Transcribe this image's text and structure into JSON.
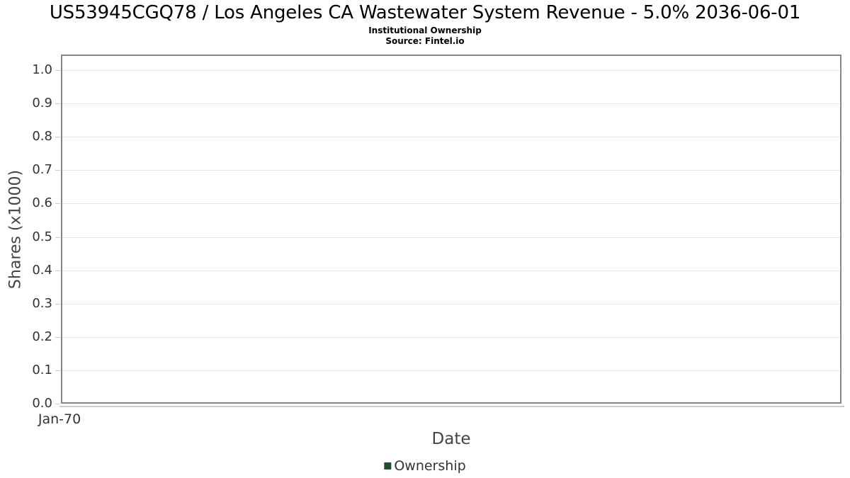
{
  "chart_data": {
    "type": "bar",
    "title": "US53945CGQ78 / Los Angeles CA Wastewater System Revenue - 5.0% 2036-06-01",
    "subtitle": "Institutional Ownership",
    "source": "Source: Fintel.io",
    "xlabel": "Date",
    "ylabel": "Shares (x1000)",
    "x_ticks": [
      "Jan-70"
    ],
    "y_ticks": [
      "0.0",
      "0.1",
      "0.2",
      "0.3",
      "0.4",
      "0.5",
      "0.6",
      "0.7",
      "0.8",
      "0.9",
      "1.0"
    ],
    "ylim": [
      0,
      1.047
    ],
    "grid": "horizontal",
    "legend_position": "bottom",
    "series": [
      {
        "name": "Ownership",
        "color": "#1e4e2d",
        "x": [],
        "values": []
      }
    ],
    "colors": {
      "title_text": "#000000",
      "tick_text": "#333333",
      "axis_label_text": "#444444",
      "plot_border": "#888888",
      "gridline": "#e7e7e7",
      "axis_line": "#cccccc",
      "background": "#ffffff"
    }
  }
}
